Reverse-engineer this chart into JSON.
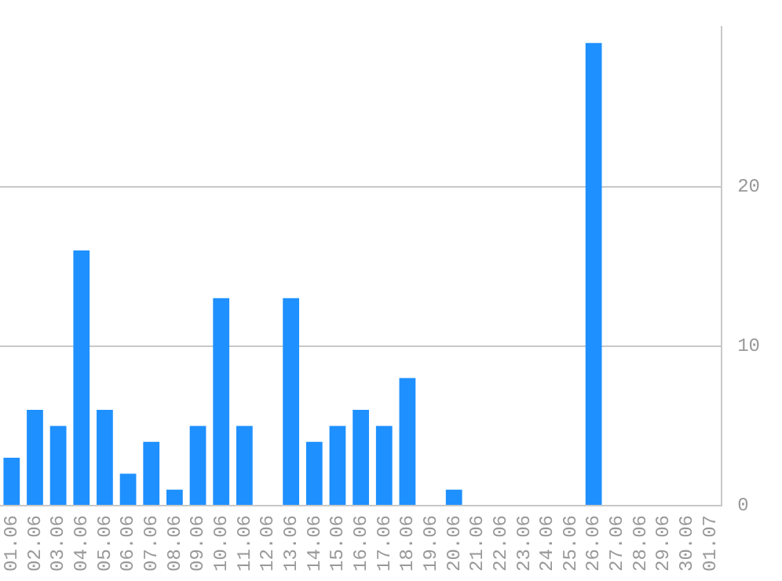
{
  "chart_data": {
    "type": "bar",
    "categories": [
      "01.06",
      "02.06",
      "03.06",
      "04.06",
      "05.06",
      "06.06",
      "07.06",
      "08.06",
      "09.06",
      "10.06",
      "11.06",
      "12.06",
      "13.06",
      "14.06",
      "15.06",
      "16.06",
      "17.06",
      "18.06",
      "19.06",
      "20.06",
      "21.06",
      "22.06",
      "23.06",
      "24.06",
      "25.06",
      "26.06",
      "27.06",
      "28.06",
      "29.06",
      "30.06",
      "01.07"
    ],
    "values": [
      3,
      6,
      5,
      16,
      6,
      2,
      4,
      1,
      5,
      13,
      5,
      0,
      13,
      4,
      5,
      6,
      5,
      8,
      0,
      1,
      0,
      0,
      0,
      0,
      0,
      29,
      0,
      0,
      0,
      0,
      0
    ],
    "color": "#1e90ff",
    "ylim": [
      0,
      30
    ],
    "yticks": [
      0,
      10,
      20
    ],
    "grid": "y",
    "legend": false
  }
}
